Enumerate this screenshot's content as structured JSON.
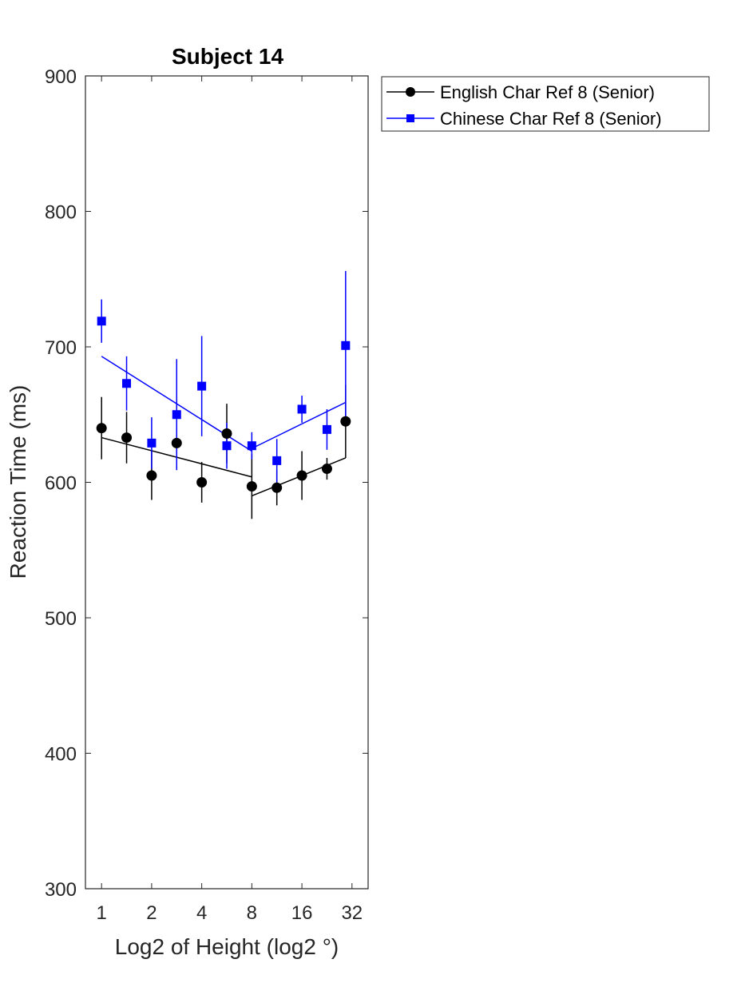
{
  "chart_data": {
    "type": "line",
    "title": "Subject 14",
    "xlabel": "Log2 of Height (log2 °)",
    "ylabel": "Reaction Time (ms)",
    "xscale": "log2",
    "xlim": [
      0.8,
      40
    ],
    "ylim": [
      300,
      900
    ],
    "xticks": [
      {
        "value": 1,
        "label": "1"
      },
      {
        "value": 2,
        "label": "2"
      },
      {
        "value": 4,
        "label": "4"
      },
      {
        "value": 8,
        "label": "8"
      },
      {
        "value": 16,
        "label": "16"
      },
      {
        "value": 32,
        "label": "32"
      }
    ],
    "yticks": [
      {
        "value": 300,
        "label": "300"
      },
      {
        "value": 400,
        "label": "400"
      },
      {
        "value": 500,
        "label": "500"
      },
      {
        "value": 600,
        "label": "600"
      },
      {
        "value": 700,
        "label": "700"
      },
      {
        "value": 800,
        "label": "800"
      },
      {
        "value": 900,
        "label": "900"
      }
    ],
    "grid": false,
    "legend_position": "outside-top-right",
    "series": [
      {
        "name": "English Char Ref 8 (Senior)",
        "color": "#000000",
        "marker": "circle",
        "x": [
          1,
          1.414,
          2,
          2.828,
          4,
          5.657,
          8,
          11.31,
          16,
          22.63,
          29.3
        ],
        "y": [
          640,
          633,
          605,
          629,
          600,
          636,
          597,
          596,
          605,
          610,
          645
        ],
        "err": [
          23,
          19,
          18,
          11,
          15,
          22,
          24,
          13,
          18,
          8,
          27
        ],
        "fit": [
          {
            "x": [
              1,
              8
            ],
            "y": [
              633,
              604
            ]
          },
          {
            "x": [
              8,
              29.3
            ],
            "y": [
              590,
              618
            ]
          }
        ]
      },
      {
        "name": "Chinese Char Ref 8 (Senior)",
        "color": "#0000ff",
        "marker": "square",
        "x": [
          1,
          1.414,
          2,
          2.828,
          4,
          5.657,
          8,
          11.31,
          16,
          22.63,
          29.3
        ],
        "y": [
          719,
          673,
          629,
          650,
          671,
          627,
          627,
          616,
          654,
          639,
          701
        ],
        "err": [
          16,
          20,
          19,
          41,
          37,
          17,
          10,
          16,
          10,
          15,
          55
        ],
        "fit": [
          {
            "x": [
              1,
              8
            ],
            "y": [
              693,
              623
            ]
          },
          {
            "x": [
              8,
              29.3
            ],
            "y": [
              625,
              659
            ]
          }
        ]
      }
    ]
  }
}
